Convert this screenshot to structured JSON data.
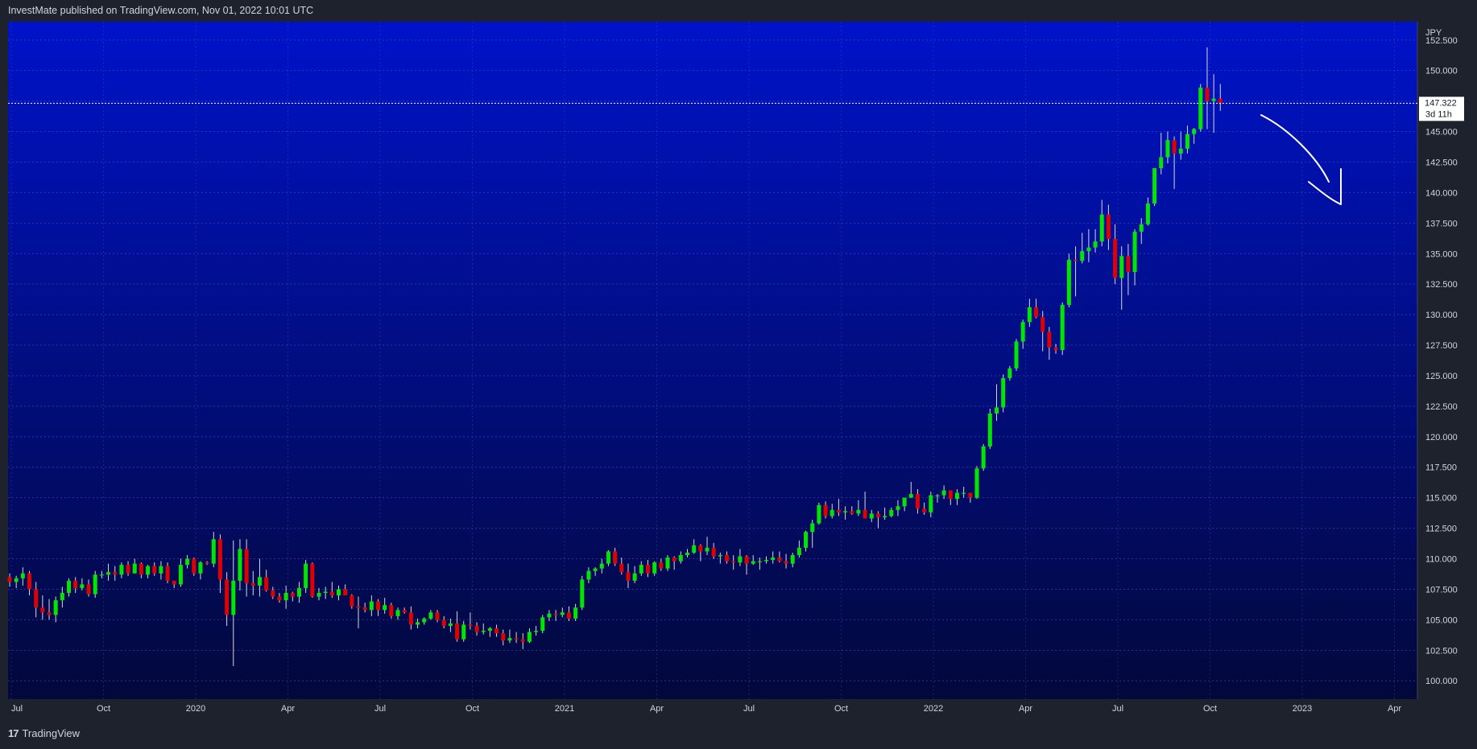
{
  "header": {
    "published": "InvestMate published on TradingView.com, Nov 01, 2022 10:01 UTC"
  },
  "footer": {
    "brand": "TradingView",
    "logo_glyph": "17"
  },
  "colors": {
    "frame": "#1e222d",
    "bg_top": "#0013c9",
    "bg_bottom": "#02083a",
    "grid": "#4a55c8",
    "up": "#00e600",
    "down": "#e00000",
    "wick": "#d8d8d8",
    "axis_text": "#d1d4dc",
    "annotation": "#ffffff"
  },
  "chart_data": {
    "type": "candlestick",
    "timeframe": "weekly",
    "currency": "JPY",
    "last_price": "147.322",
    "countdown": "3d 11h",
    "ylim": [
      98.5,
      154.0
    ],
    "y_ticks": [
      "100.000",
      "102.500",
      "105.000",
      "107.500",
      "110.000",
      "112.500",
      "115.000",
      "117.500",
      "120.000",
      "122.500",
      "125.000",
      "127.500",
      "130.000",
      "132.500",
      "135.000",
      "137.500",
      "140.000",
      "142.500",
      "145.000",
      "147.500",
      "150.000",
      "152.500"
    ],
    "x_ticks": [
      "Jul",
      "Oct",
      "2020",
      "Apr",
      "Jul",
      "Oct",
      "2021",
      "Apr",
      "Jul",
      "Oct",
      "2022",
      "Apr",
      "Jul",
      "Oct",
      "2023",
      "Apr"
    ],
    "candles": [
      [
        108.5,
        108.8,
        107.7,
        108.1
      ],
      [
        108.1,
        108.6,
        107.6,
        108.4
      ],
      [
        108.4,
        109.3,
        107.8,
        108.8
      ],
      [
        108.8,
        109.0,
        107.0,
        107.5
      ],
      [
        107.5,
        108.1,
        105.2,
        106.0
      ],
      [
        106.0,
        107.0,
        105.0,
        105.6
      ],
      [
        105.6,
        106.7,
        105.0,
        105.4
      ],
      [
        105.4,
        106.9,
        104.8,
        106.6
      ],
      [
        106.6,
        107.7,
        106.0,
        107.2
      ],
      [
        107.2,
        108.4,
        106.9,
        108.2
      ],
      [
        108.2,
        108.5,
        107.2,
        107.6
      ],
      [
        107.6,
        108.4,
        107.4,
        107.9
      ],
      [
        107.9,
        108.3,
        106.9,
        107.1
      ],
      [
        107.1,
        109.0,
        106.8,
        108.7
      ],
      [
        108.7,
        109.0,
        108.4,
        108.7
      ],
      [
        108.7,
        109.6,
        108.2,
        108.9
      ],
      [
        108.9,
        109.4,
        108.2,
        108.7
      ],
      [
        108.7,
        109.7,
        108.4,
        109.5
      ],
      [
        109.5,
        109.8,
        108.6,
        108.8
      ],
      [
        108.8,
        110.0,
        108.8,
        109.6
      ],
      [
        109.6,
        109.7,
        108.4,
        108.7
      ],
      [
        108.7,
        109.5,
        108.4,
        109.4
      ],
      [
        109.4,
        109.7,
        108.6,
        108.8
      ],
      [
        108.8,
        109.8,
        108.3,
        109.4
      ],
      [
        109.4,
        109.7,
        108.0,
        108.2
      ],
      [
        108.2,
        108.2,
        107.6,
        107.9
      ],
      [
        107.9,
        110.0,
        107.7,
        109.5
      ],
      [
        109.5,
        110.3,
        109.2,
        110.0
      ],
      [
        110.0,
        110.1,
        108.6,
        108.8
      ],
      [
        108.8,
        109.8,
        108.3,
        109.7
      ],
      [
        109.7,
        109.8,
        109.5,
        109.6
      ],
      [
        109.6,
        112.2,
        109.3,
        111.6
      ],
      [
        111.6,
        112.0,
        107.2,
        108.3
      ],
      [
        108.3,
        108.9,
        104.5,
        105.4
      ],
      [
        105.4,
        111.5,
        101.2,
        108.2
      ],
      [
        108.2,
        111.6,
        107.4,
        110.8
      ],
      [
        110.8,
        111.6,
        106.9,
        108.0
      ],
      [
        108.0,
        109.0,
        107.0,
        107.8
      ],
      [
        107.8,
        110.0,
        106.9,
        108.5
      ],
      [
        108.5,
        109.1,
        107.3,
        107.4
      ],
      [
        107.4,
        107.7,
        106.7,
        106.9
      ],
      [
        106.9,
        107.2,
        106.4,
        106.6
      ],
      [
        106.6,
        107.8,
        105.9,
        107.2
      ],
      [
        107.2,
        107.3,
        106.5,
        106.9
      ],
      [
        106.9,
        108.1,
        106.4,
        107.6
      ],
      [
        107.6,
        109.9,
        107.2,
        109.6
      ],
      [
        109.6,
        109.7,
        106.8,
        106.9
      ],
      [
        106.9,
        107.6,
        106.6,
        107.2
      ],
      [
        107.2,
        107.7,
        106.7,
        107.3
      ],
      [
        107.3,
        108.1,
        106.8,
        107.0
      ],
      [
        107.0,
        107.8,
        106.6,
        107.5
      ],
      [
        107.5,
        107.9,
        107.0,
        107.0
      ],
      [
        107.0,
        107.1,
        105.9,
        106.1
      ],
      [
        106.1,
        106.9,
        104.3,
        106.0
      ],
      [
        106.0,
        106.4,
        105.6,
        105.8
      ],
      [
        105.8,
        107.0,
        105.3,
        106.5
      ],
      [
        106.5,
        106.7,
        105.3,
        105.8
      ],
      [
        105.8,
        106.8,
        105.5,
        106.2
      ],
      [
        106.2,
        106.4,
        105.1,
        105.3
      ],
      [
        105.3,
        106.0,
        105.0,
        105.8
      ],
      [
        105.8,
        106.0,
        105.5,
        105.6
      ],
      [
        105.6,
        106.1,
        104.2,
        104.6
      ],
      [
        104.6,
        105.1,
        104.3,
        104.8
      ],
      [
        104.8,
        105.2,
        104.6,
        105.1
      ],
      [
        105.1,
        105.8,
        105.0,
        105.6
      ],
      [
        105.6,
        105.8,
        104.8,
        105.0
      ],
      [
        105.0,
        105.3,
        104.3,
        104.5
      ],
      [
        104.5,
        105.1,
        104.0,
        104.7
      ],
      [
        104.7,
        105.7,
        103.2,
        103.4
      ],
      [
        103.4,
        104.9,
        103.2,
        104.6
      ],
      [
        104.6,
        105.6,
        104.2,
        104.5
      ],
      [
        104.5,
        104.8,
        103.7,
        104.0
      ],
      [
        104.0,
        104.7,
        103.8,
        104.1
      ],
      [
        104.1,
        104.4,
        103.6,
        104.3
      ],
      [
        104.3,
        104.6,
        103.6,
        103.9
      ],
      [
        103.9,
        104.2,
        102.9,
        103.3
      ],
      [
        103.3,
        104.2,
        103.1,
        103.5
      ],
      [
        103.5,
        104.0,
        103.1,
        103.4
      ],
      [
        103.4,
        103.9,
        102.6,
        103.2
      ],
      [
        103.2,
        104.3,
        103.1,
        104.0
      ],
      [
        104.0,
        104.5,
        103.7,
        104.1
      ],
      [
        104.1,
        105.4,
        103.9,
        105.2
      ],
      [
        105.2,
        105.8,
        104.9,
        105.5
      ],
      [
        105.5,
        105.8,
        104.9,
        105.4
      ],
      [
        105.4,
        106.0,
        105.2,
        105.6
      ],
      [
        105.6,
        106.1,
        104.9,
        105.1
      ],
      [
        105.1,
        106.3,
        104.9,
        106.0
      ],
      [
        106.0,
        108.6,
        105.8,
        108.3
      ],
      [
        108.3,
        109.3,
        108.0,
        109.0
      ],
      [
        109.0,
        109.3,
        108.6,
        109.2
      ],
      [
        109.2,
        110.0,
        108.8,
        109.6
      ],
      [
        109.6,
        110.7,
        109.4,
        110.6
      ],
      [
        110.6,
        110.9,
        109.4,
        109.6
      ],
      [
        109.6,
        110.1,
        108.7,
        108.9
      ],
      [
        108.9,
        109.6,
        107.6,
        108.2
      ],
      [
        108.2,
        109.4,
        108.0,
        108.8
      ],
      [
        108.8,
        109.8,
        108.6,
        109.5
      ],
      [
        109.5,
        109.9,
        108.5,
        108.8
      ],
      [
        108.8,
        109.8,
        108.6,
        109.7
      ],
      [
        109.7,
        110.0,
        109.0,
        109.2
      ],
      [
        109.2,
        110.3,
        109.0,
        110.1
      ],
      [
        110.1,
        110.2,
        109.1,
        109.8
      ],
      [
        109.8,
        110.6,
        109.6,
        110.3
      ],
      [
        110.3,
        110.8,
        110.1,
        110.5
      ],
      [
        110.5,
        111.6,
        110.4,
        111.1
      ],
      [
        111.1,
        111.2,
        109.8,
        110.6
      ],
      [
        110.6,
        111.8,
        110.3,
        110.9
      ],
      [
        110.9,
        111.3,
        110.0,
        110.2
      ],
      [
        110.2,
        110.5,
        109.6,
        110.3
      ],
      [
        110.3,
        110.6,
        109.6,
        109.8
      ],
      [
        109.8,
        110.3,
        109.1,
        109.7
      ],
      [
        109.7,
        110.8,
        109.4,
        110.2
      ],
      [
        110.2,
        110.3,
        108.7,
        109.6
      ],
      [
        109.6,
        110.3,
        109.5,
        109.8
      ],
      [
        109.8,
        110.1,
        109.1,
        109.8
      ],
      [
        109.8,
        110.2,
        109.6,
        109.9
      ],
      [
        109.9,
        110.6,
        109.6,
        110.1
      ],
      [
        110.1,
        110.6,
        109.7,
        109.8
      ],
      [
        109.8,
        110.4,
        109.2,
        109.6
      ],
      [
        109.6,
        110.5,
        109.3,
        110.3
      ],
      [
        110.3,
        111.5,
        110.1,
        110.9
      ],
      [
        110.9,
        112.3,
        110.6,
        112.2
      ],
      [
        112.2,
        113.2,
        110.9,
        112.9
      ],
      [
        112.9,
        114.6,
        112.8,
        114.4
      ],
      [
        114.4,
        114.7,
        113.3,
        113.5
      ],
      [
        113.5,
        114.5,
        113.3,
        114.0
      ],
      [
        114.0,
        114.9,
        113.5,
        113.8
      ],
      [
        113.8,
        114.3,
        113.2,
        113.9
      ],
      [
        113.9,
        114.3,
        113.6,
        113.7
      ],
      [
        113.7,
        114.8,
        113.5,
        114.0
      ],
      [
        114.0,
        115.5,
        113.6,
        113.3
      ],
      [
        113.3,
        114.0,
        113.0,
        113.7
      ],
      [
        113.7,
        113.9,
        112.5,
        113.4
      ],
      [
        113.4,
        114.2,
        113.2,
        113.5
      ],
      [
        113.5,
        114.2,
        113.4,
        114.0
      ],
      [
        114.0,
        114.8,
        113.5,
        114.3
      ],
      [
        114.3,
        115.0,
        113.9,
        115.0
      ],
      [
        115.0,
        116.3,
        115.0,
        115.3
      ],
      [
        115.3,
        115.7,
        113.7,
        114.1
      ],
      [
        114.1,
        114.6,
        113.6,
        113.8
      ],
      [
        113.8,
        115.5,
        113.4,
        115.2
      ],
      [
        115.2,
        115.3,
        114.6,
        115.2
      ],
      [
        115.2,
        116.0,
        114.9,
        115.6
      ],
      [
        115.6,
        115.6,
        114.4,
        114.9
      ],
      [
        114.9,
        115.7,
        114.4,
        115.4
      ],
      [
        115.4,
        115.9,
        115.0,
        115.4
      ],
      [
        115.4,
        115.4,
        114.6,
        115.0
      ],
      [
        115.0,
        117.6,
        114.9,
        117.4
      ],
      [
        117.4,
        119.4,
        117.2,
        119.2
      ],
      [
        119.2,
        122.3,
        119.0,
        121.9
      ],
      [
        121.9,
        124.3,
        121.3,
        122.4
      ],
      [
        122.4,
        125.1,
        122.0,
        124.8
      ],
      [
        124.8,
        125.8,
        124.6,
        125.6
      ],
      [
        125.6,
        128.0,
        125.4,
        127.8
      ],
      [
        127.8,
        129.6,
        127.2,
        129.4
      ],
      [
        129.4,
        131.3,
        129.0,
        130.6
      ],
      [
        130.6,
        131.3,
        129.7,
        129.8
      ],
      [
        129.8,
        130.3,
        127.0,
        128.6
      ],
      [
        128.6,
        129.0,
        126.3,
        127.3
      ],
      [
        127.3,
        127.6,
        126.8,
        127.1
      ],
      [
        127.1,
        131.0,
        126.7,
        130.8
      ],
      [
        130.8,
        135.0,
        130.6,
        134.5
      ],
      [
        134.5,
        135.6,
        131.5,
        134.4
      ],
      [
        134.4,
        136.7,
        134.2,
        135.2
      ],
      [
        135.2,
        137.0,
        134.3,
        135.5
      ],
      [
        135.5,
        137.0,
        135.1,
        136.0
      ],
      [
        136.0,
        139.4,
        135.6,
        138.2
      ],
      [
        138.2,
        139.0,
        135.3,
        136.2
      ],
      [
        136.2,
        137.4,
        132.5,
        133.0
      ],
      [
        133.0,
        135.6,
        130.4,
        134.8
      ],
      [
        134.8,
        135.8,
        131.6,
        133.5
      ],
      [
        133.5,
        137.0,
        132.4,
        136.8
      ],
      [
        136.8,
        137.9,
        135.8,
        137.4
      ],
      [
        137.4,
        139.6,
        137.3,
        139.1
      ],
      [
        139.1,
        142.0,
        138.9,
        142.0
      ],
      [
        142.0,
        144.9,
        141.5,
        142.9
      ],
      [
        142.9,
        145.0,
        142.4,
        144.3
      ],
      [
        144.3,
        144.6,
        140.3,
        143.2
      ],
      [
        143.2,
        145.0,
        142.7,
        143.6
      ],
      [
        143.6,
        145.5,
        143.2,
        144.8
      ],
      [
        144.8,
        145.3,
        144.0,
        145.2
      ],
      [
        145.2,
        148.9,
        145.0,
        148.6
      ],
      [
        148.6,
        151.9,
        145.2,
        147.5
      ],
      [
        147.5,
        149.7,
        144.9,
        147.7
      ],
      [
        147.7,
        148.9,
        146.7,
        147.3
      ]
    ]
  }
}
